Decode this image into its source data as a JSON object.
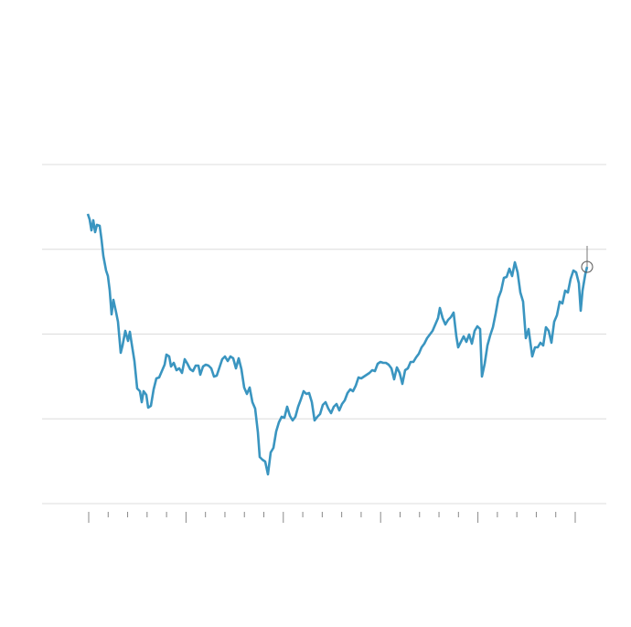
{
  "chart_data": {
    "type": "line",
    "color": "#3a95c0",
    "grid": true,
    "end_marker": true,
    "xlim": [
      -51,
      566
    ],
    "ylim": [
      0,
      371
    ],
    "xticks": [
      0,
      106.4,
      212.8,
      319.2,
      425.6,
      532
    ],
    "xminor_ticks": [
      21.28,
      42.56,
      63.84,
      85.12,
      127.68,
      148.96,
      170.24,
      191.52,
      234.08,
      255.36,
      276.64,
      297.92,
      340.48,
      361.76,
      383.04,
      404.32,
      446.88,
      468.16,
      489.44,
      510.72
    ],
    "yticks": [
      0,
      92.75,
      185.5,
      278.25,
      371
    ],
    "x": [
      -1,
      1,
      3,
      5,
      7,
      9,
      12,
      14,
      16,
      19,
      21,
      23,
      25,
      27,
      30,
      32,
      35,
      37,
      40,
      43,
      45,
      47,
      50,
      53,
      56,
      58,
      60,
      63,
      65,
      68,
      71,
      74,
      77,
      80,
      83,
      85,
      88,
      90,
      93,
      96,
      99,
      102,
      105,
      108,
      111,
      114,
      117,
      120,
      122,
      125,
      128,
      131,
      134,
      137,
      140,
      143,
      146,
      149,
      152,
      155,
      158,
      161,
      164,
      167,
      170,
      173,
      176,
      179,
      182,
      185,
      187,
      190,
      193,
      196,
      199,
      202,
      205,
      208,
      211,
      214,
      217,
      220,
      223,
      226,
      229,
      232,
      235,
      238,
      241,
      244,
      247,
      250,
      253,
      256,
      259,
      262,
      265,
      268,
      271,
      274,
      277,
      280,
      283,
      286,
      289,
      292,
      295,
      298,
      301,
      304,
      307,
      310,
      313,
      316,
      319,
      322,
      325,
      328,
      331,
      334,
      337,
      340,
      343,
      346,
      349,
      352,
      355,
      358,
      361,
      364,
      367,
      370,
      373,
      376,
      379,
      382,
      384,
      387,
      390,
      393,
      396,
      399,
      402,
      404,
      407,
      410,
      413,
      416,
      419,
      422,
      425,
      428,
      430,
      433,
      436,
      439,
      442,
      445,
      448,
      451,
      454,
      457,
      460,
      463,
      466,
      469,
      472,
      475,
      478,
      481,
      483,
      485,
      488,
      491,
      494,
      497,
      500,
      503,
      506,
      509,
      512,
      515,
      518,
      521,
      524,
      527,
      530,
      533,
      536,
      538,
      540,
      543,
      545
    ],
    "values": [
      317,
      311,
      299,
      310,
      297,
      305,
      304,
      289,
      271,
      255,
      249,
      233,
      207,
      223,
      209,
      199,
      165,
      173,
      189,
      178,
      188,
      175,
      156,
      126,
      123,
      111,
      123,
      119,
      105,
      107,
      125,
      137,
      138,
      145,
      152,
      163,
      161,
      150,
      154,
      146,
      148,
      143,
      158,
      153,
      147,
      145,
      151,
      151,
      141,
      150,
      152,
      151,
      148,
      139,
      140,
      149,
      158,
      161,
      156,
      161,
      159,
      148,
      159,
      147,
      127,
      120,
      127,
      111,
      104,
      78,
      51,
      48,
      46,
      32,
      56,
      61,
      79,
      89,
      95,
      94,
      106,
      96,
      91,
      95,
      106,
      114,
      123,
      120,
      121,
      111,
      91,
      95,
      98,
      108,
      111,
      104,
      99,
      106,
      109,
      102,
      109,
      113,
      121,
      125,
      123,
      129,
      138,
      137,
      139,
      141,
      143,
      146,
      145,
      153,
      155,
      154,
      154,
      152,
      148,
      136,
      149,
      143,
      131,
      146,
      148,
      155,
      155,
      160,
      164,
      171,
      175,
      181,
      185,
      189,
      196,
      203,
      214,
      203,
      196,
      201,
      204,
      209,
      183,
      171,
      177,
      183,
      177,
      185,
      175,
      189,
      194,
      191,
      139,
      153,
      173,
      184,
      193,
      208,
      225,
      233,
      247,
      248,
      257,
      249,
      264,
      253,
      231,
      221,
      181,
      191,
      176,
      161,
      171,
      171,
      176,
      173,
      193,
      189,
      176,
      199,
      206,
      221,
      219,
      233,
      231,
      246,
      255,
      253,
      241,
      211,
      233,
      251,
      259
    ]
  }
}
